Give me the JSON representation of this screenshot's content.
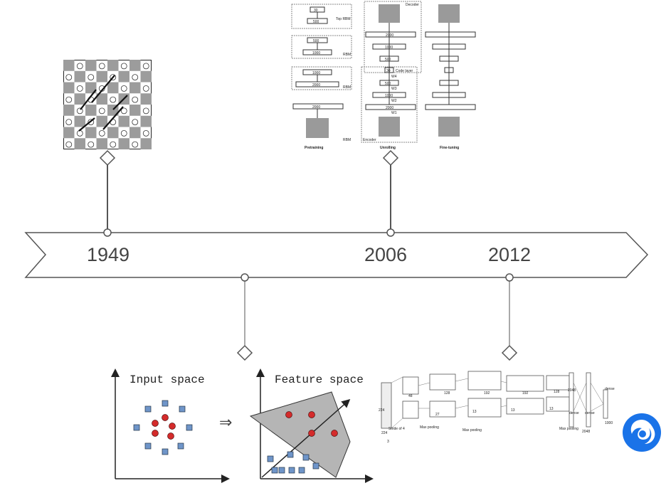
{
  "timeline": {
    "years": [
      "1949",
      "2006",
      "2012"
    ]
  },
  "autoencoder": {
    "top_rbm": "Top RBM",
    "rbm": "RBM",
    "decoder": "Decoder",
    "encoder": "Encoder",
    "code_layer": "Code layer",
    "pretraining": "Pretraining",
    "unrolling": "Unrolling",
    "fine_tuning": "Fine-tuning",
    "pre_units": [
      "30",
      "500",
      "500",
      "1000",
      "1000",
      "2000",
      "2000"
    ],
    "unroll_units": [
      "2000",
      "1000",
      "500",
      "30",
      "500",
      "1000",
      "2000"
    ],
    "weights": [
      "W1",
      "W2",
      "W3",
      "W4"
    ]
  },
  "kernel": {
    "input_label": "Input space",
    "feature_label": "Feature space"
  },
  "alexnet": {
    "numbers": [
      "224",
      "224",
      "48",
      "128",
      "192",
      "192",
      "128",
      "2048",
      "2048",
      "1000",
      "27",
      "13",
      "13",
      "13",
      "3"
    ],
    "labels": [
      "Stride of 4",
      "Max pooling",
      "Max pooling",
      "Max pooling",
      "dense",
      "dense",
      "dense"
    ]
  },
  "colors": {
    "line": "#555555",
    "logo": "#1a73e8",
    "red_point": "#d42b2b",
    "blue_point": "#6f95c9"
  }
}
